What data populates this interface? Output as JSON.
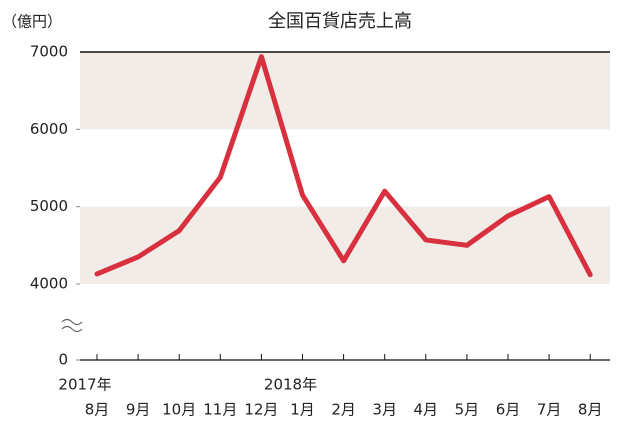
{
  "chart_data": {
    "type": "line",
    "title": "全国百貨店売上高",
    "y_unit": "（億円）",
    "categories": [
      "8月",
      "9月",
      "10月",
      "11月",
      "12月",
      "1月",
      "2月",
      "3月",
      "4月",
      "5月",
      "6月",
      "7月",
      "8月"
    ],
    "years": [
      "2017年",
      null,
      null,
      null,
      null,
      "2018年",
      null,
      null,
      null,
      null,
      null,
      null,
      null
    ],
    "series": [
      {
        "name": "全国百貨店売上高",
        "color": "#d8303f",
        "values": [
          4130,
          4350,
          4690,
          5380,
          6940,
          5150,
          4300,
          5200,
          4570,
          4500,
          4880,
          5130,
          4120
        ]
      }
    ],
    "ylim": [
      0,
      7000
    ],
    "axis_break": [
      0,
      4000
    ],
    "yticks": [
      0,
      4000,
      5000,
      6000,
      7000
    ],
    "bands": [
      [
        4000,
        5000
      ],
      [
        6000,
        7000
      ]
    ],
    "band_color": "#f1ece7"
  }
}
